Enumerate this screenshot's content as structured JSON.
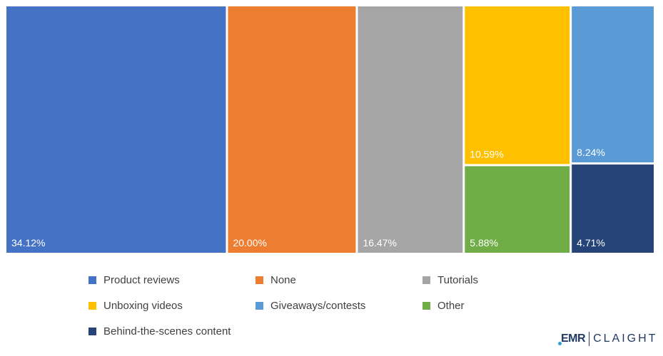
{
  "chart_data": {
    "type": "treemap",
    "labels": [
      "Product reviews",
      "None",
      "Tutorials",
      "Unboxing videos",
      "Giveaways/contests",
      "Other",
      "Behind-the-scenes content"
    ],
    "values": [
      34.12,
      20.0,
      16.47,
      10.59,
      8.24,
      5.88,
      4.71
    ],
    "value_labels": [
      "34.12%",
      "20.00%",
      "16.47%",
      "10.59%",
      "8.24%",
      "5.88%",
      "4.71%"
    ],
    "colors": [
      "#4472c4",
      "#ed7d31",
      "#a5a5a5",
      "#ffc000",
      "#5b9bd5",
      "#70ad47",
      "#264478"
    ],
    "legend_position": "bottom"
  },
  "logo": {
    "brand_mark": "EMR",
    "brand_word": "CLAIGHT"
  }
}
